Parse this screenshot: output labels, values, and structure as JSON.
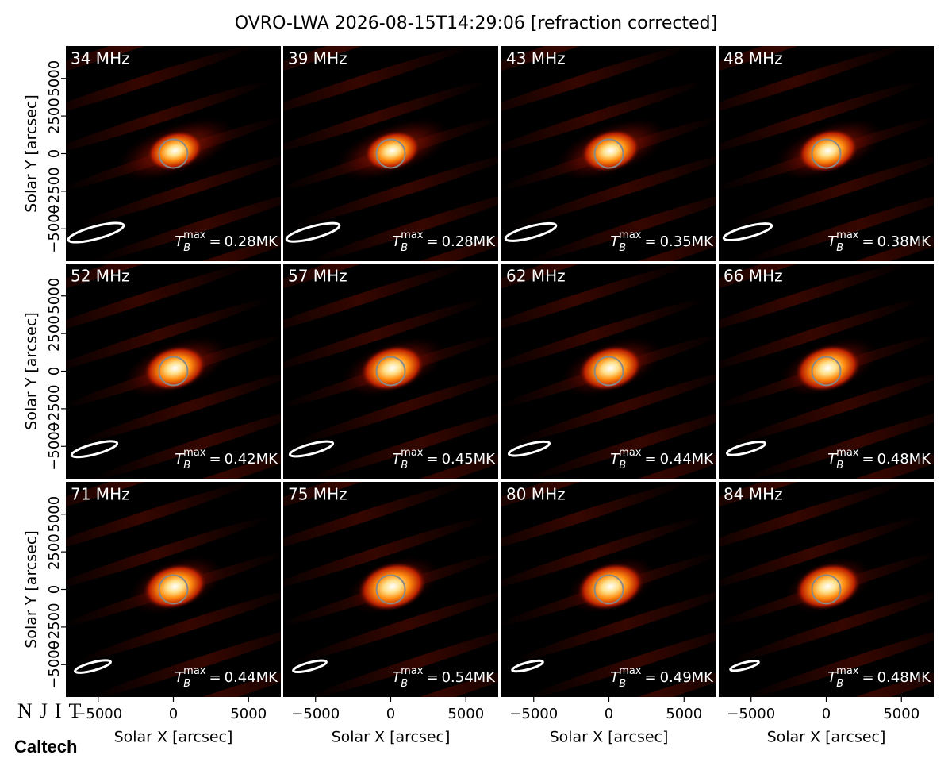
{
  "chart_data": {
    "type": "image-grid",
    "title": "OVRO-LWA 2026-08-15T14:29:06 [refraction corrected]",
    "xlabel": "Solar X [arcsec]",
    "ylabel": "Solar Y [arcsec]",
    "xlim": [
      -7150,
      7150
    ],
    "ylim": [
      -7150,
      7150
    ],
    "xticks": [
      {
        "value": -5000,
        "label": "−5000"
      },
      0,
      5000
    ],
    "yticks": [
      {
        "value": -5000,
        "label": "−5000"
      },
      {
        "value": -2500,
        "label": "−2500"
      },
      0,
      2500,
      5000
    ],
    "tb_symbol": "T",
    "tb_sub": "B",
    "tb_sup": "max",
    "tb_eq": "=",
    "panels": [
      {
        "label": "34 MHz",
        "tb_max": {
          "value": 0.28,
          "label": "0.28MK"
        }
      },
      {
        "label": "39 MHz",
        "tb_max": {
          "value": 0.28,
          "label": "0.28MK"
        }
      },
      {
        "label": "43 MHz",
        "tb_max": {
          "value": 0.35,
          "label": "0.35MK"
        }
      },
      {
        "label": "48 MHz",
        "tb_max": {
          "value": 0.38,
          "label": "0.38MK"
        }
      },
      {
        "label": "52 MHz",
        "tb_max": {
          "value": 0.42,
          "label": "0.42MK"
        }
      },
      {
        "label": "57 MHz",
        "tb_max": {
          "value": 0.45,
          "label": "0.45MK"
        }
      },
      {
        "label": "62 MHz",
        "tb_max": {
          "value": 0.44,
          "label": "0.44MK"
        }
      },
      {
        "label": "66 MHz",
        "tb_max": {
          "value": 0.48,
          "label": "0.48MK"
        }
      },
      {
        "label": "71 MHz",
        "tb_max": {
          "value": 0.44,
          "label": "0.44MK"
        }
      },
      {
        "label": "75 MHz",
        "tb_max": {
          "value": 0.54,
          "label": "0.54MK"
        }
      },
      {
        "label": "80 MHz",
        "tb_max": {
          "value": 0.49,
          "label": "0.49MK"
        }
      },
      {
        "label": "84 MHz",
        "tb_max": {
          "value": 0.48,
          "label": "0.48MK"
        }
      }
    ]
  },
  "logos": {
    "njit": "NJIT",
    "caltech": "Caltech"
  }
}
